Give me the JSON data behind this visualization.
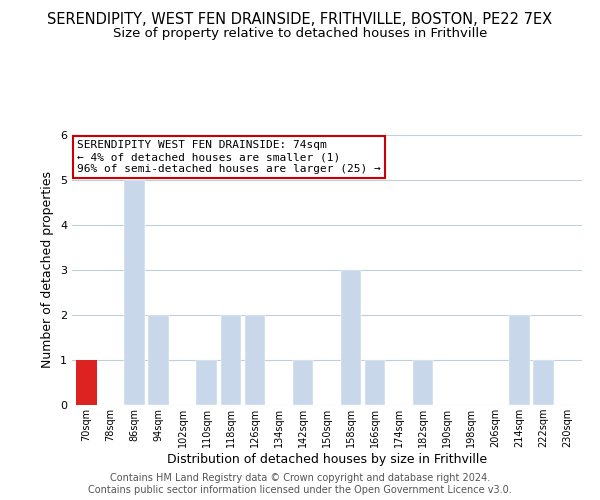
{
  "title": "SERENDIPITY, WEST FEN DRAINSIDE, FRITHVILLE, BOSTON, PE22 7EX",
  "subtitle": "Size of property relative to detached houses in Frithville",
  "xlabel": "Distribution of detached houses by size in Frithville",
  "ylabel": "Number of detached properties",
  "bin_labels": [
    "70sqm",
    "78sqm",
    "86sqm",
    "94sqm",
    "102sqm",
    "110sqm",
    "118sqm",
    "126sqm",
    "134sqm",
    "142sqm",
    "150sqm",
    "158sqm",
    "166sqm",
    "174sqm",
    "182sqm",
    "190sqm",
    "198sqm",
    "206sqm",
    "214sqm",
    "222sqm",
    "230sqm"
  ],
  "bar_values": [
    1,
    0,
    5,
    2,
    0,
    1,
    2,
    2,
    0,
    1,
    0,
    3,
    1,
    0,
    1,
    0,
    0,
    0,
    2,
    1,
    0
  ],
  "bar_color": "#c8d8ea",
  "highlight_bar_index": 0,
  "highlight_bar_color": "#dd2222",
  "ylim": [
    0,
    6
  ],
  "yticks": [
    0,
    1,
    2,
    3,
    4,
    5,
    6
  ],
  "annotation_text": "SERENDIPITY WEST FEN DRAINSIDE: 74sqm\n← 4% of detached houses are smaller (1)\n96% of semi-detached houses are larger (25) →",
  "annotation_box_edgecolor": "#cc0000",
  "footer_line1": "Contains HM Land Registry data © Crown copyright and database right 2024.",
  "footer_line2": "Contains public sector information licensed under the Open Government Licence v3.0.",
  "bg_color": "#ffffff",
  "grid_color": "#c0ced8",
  "title_fontsize": 10.5,
  "subtitle_fontsize": 9.5,
  "annotation_fontsize": 8,
  "footer_fontsize": 7,
  "xlabel_fontsize": 9,
  "ylabel_fontsize": 9
}
